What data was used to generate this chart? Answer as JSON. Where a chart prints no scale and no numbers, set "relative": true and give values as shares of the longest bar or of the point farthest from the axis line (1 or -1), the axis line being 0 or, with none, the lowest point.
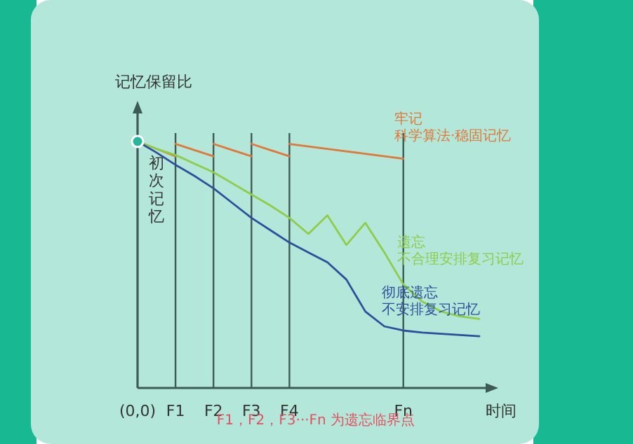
{
  "chart_data": {
    "type": "line",
    "relative": true,
    "ylabel": "记忆保留比",
    "xlabel": "时间",
    "grid": "x",
    "categories": [
      "(0,0)",
      null,
      "F1",
      null,
      "F2",
      null,
      "F3",
      null,
      "F4",
      null,
      null,
      null,
      null,
      null,
      "Fn",
      null,
      null,
      null,
      null
    ],
    "series": [
      {
        "color": "#e0783a",
        "values": [
          1,
          0.97,
          0.94,
          null,
          null,
          null,
          null,
          null,
          null,
          null,
          null,
          null,
          null,
          null,
          null,
          null,
          null,
          null,
          null
        ]
      },
      {
        "color": "#e0783a",
        "values": [
          null,
          null,
          0.99,
          0.965,
          0.94,
          null,
          null,
          null,
          null,
          null,
          null,
          null,
          null,
          null,
          null,
          null,
          null,
          null,
          null
        ]
      },
      {
        "color": "#e0783a",
        "values": [
          null,
          null,
          null,
          null,
          0.99,
          0.965,
          0.94,
          null,
          null,
          null,
          null,
          null,
          null,
          null,
          null,
          null,
          null,
          null,
          null
        ]
      },
      {
        "color": "#e0783a",
        "values": [
          null,
          null,
          null,
          null,
          null,
          null,
          0.99,
          0.965,
          0.94,
          null,
          null,
          null,
          null,
          null,
          null,
          null,
          null,
          null,
          null
        ]
      },
      {
        "name": "牢记",
        "color": "#e0783a",
        "values": [
          null,
          null,
          null,
          null,
          null,
          null,
          null,
          null,
          0.99,
          0.98,
          0.97,
          0.96,
          0.95,
          0.94,
          0.93,
          null,
          null,
          null,
          null
        ]
      },
      {
        "name": "遗忘",
        "color": "#8fcc4a",
        "values": [
          1,
          0.97,
          0.945,
          0.91,
          0.875,
          0.83,
          0.785,
          0.74,
          0.69,
          0.625,
          0.7,
          0.58,
          0.67,
          0.55,
          0.42,
          0.35,
          0.31,
          0.29,
          0.28
        ]
      },
      {
        "name": "彻底遗忘",
        "color": "#2d4f9c",
        "values": [
          1,
          0.955,
          0.905,
          0.86,
          0.81,
          0.75,
          0.69,
          0.64,
          0.59,
          0.55,
          0.51,
          0.44,
          0.31,
          0.25,
          0.233,
          0.225,
          0.22,
          0.215,
          0.21
        ]
      },
      {
        "type": "scatter",
        "color": "#27b59c",
        "values": [
          1,
          null,
          null,
          null,
          null,
          null,
          null,
          null,
          null,
          null,
          null,
          null,
          null,
          null,
          null,
          null,
          null,
          null,
          null
        ]
      }
    ],
    "annotations": [
      "初次记忆",
      "科学算法·稳固记忆",
      "不合理安排复习记忆",
      "不安排复习记忆",
      "F1，F2，F3···Fn 为遗忘临界点"
    ]
  }
}
